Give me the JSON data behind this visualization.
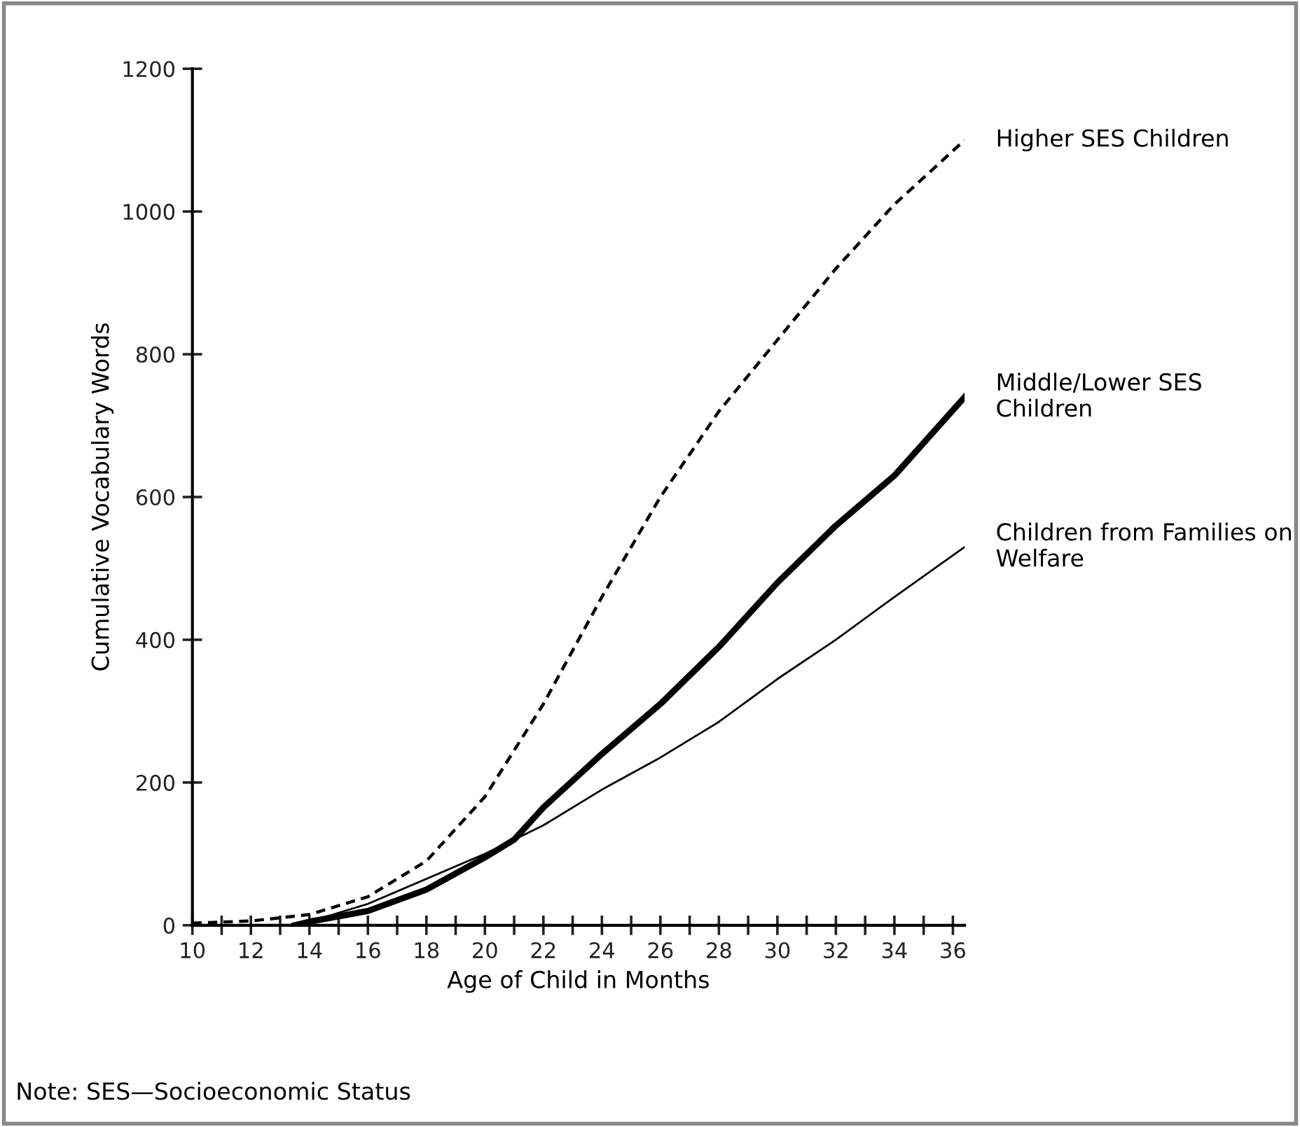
{
  "chart_data": {
    "type": "line",
    "xlabel": "Age of Child in Months",
    "ylabel": "Cumulative Vocabulary Words",
    "annotations": [
      "Note: SES—Socioeconomic Status"
    ],
    "xlim": [
      10,
      36.4
    ],
    "ylim": [
      0,
      1200
    ],
    "xticks": [
      10,
      {
        "value": 11,
        "label": null
      },
      12,
      {
        "value": 13,
        "label": null
      },
      14,
      {
        "value": 15,
        "label": null
      },
      16,
      {
        "value": 17,
        "label": null
      },
      18,
      {
        "value": 19,
        "label": null
      },
      20,
      {
        "value": 21,
        "label": null
      },
      22,
      {
        "value": 23,
        "label": null
      },
      24,
      {
        "value": 25,
        "label": null
      },
      26,
      {
        "value": 27,
        "label": null
      },
      28,
      {
        "value": 29,
        "label": null
      },
      30,
      {
        "value": 31,
        "label": null
      },
      32,
      {
        "value": 33,
        "label": null
      },
      34,
      {
        "value": 35,
        "label": null
      },
      36
    ],
    "yticks": [
      0,
      200,
      400,
      600,
      800,
      1000,
      1200
    ],
    "grid": false,
    "legend": false,
    "marker": "none",
    "series": [
      {
        "name": "Higher SES Children",
        "color": "#000000",
        "line_style": "dashed",
        "x": [
          10,
          12,
          14,
          16,
          18,
          20,
          22,
          24,
          26,
          28,
          30,
          32,
          34,
          36.4
        ],
        "values": [
          3,
          6,
          15,
          40,
          90,
          180,
          310,
          460,
          600,
          720,
          820,
          920,
          1010,
          1100
        ]
      },
      {
        "name": "Middle/Lower SES Children",
        "color": "#000000",
        "line_style": "solid",
        "x": [
          13.5,
          14,
          16,
          18,
          20,
          21,
          22,
          24,
          26,
          28,
          30,
          32,
          33,
          34,
          36.4
        ],
        "values": [
          0,
          5,
          20,
          50,
          95,
          120,
          165,
          240,
          310,
          390,
          480,
          560,
          595,
          630,
          740
        ]
      },
      {
        "name": "Children from Families on Welfare",
        "color": "#000000",
        "line_style": "solid",
        "x": [
          13.5,
          14,
          16,
          18,
          20,
          21,
          22,
          24,
          26,
          28,
          30,
          32,
          34,
          36.4
        ],
        "values": [
          0,
          5,
          30,
          65,
          100,
          120,
          140,
          190,
          235,
          285,
          345,
          400,
          460,
          530
        ]
      }
    ]
  }
}
